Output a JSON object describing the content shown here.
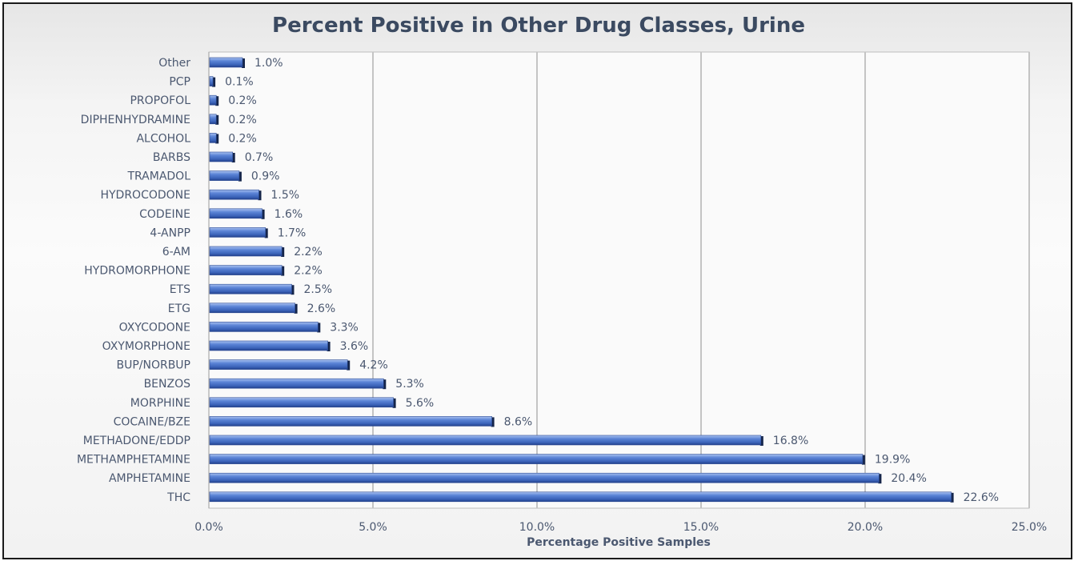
{
  "chart_data": {
    "type": "bar",
    "orientation": "horizontal",
    "title": "Percent Positive in Other Drug Classes, Urine",
    "xlabel": "Percentage Positive Samples",
    "ylabel": "",
    "xlim": [
      0,
      25
    ],
    "x_ticks": [
      "0.0%",
      "5.0%",
      "10.0%",
      "15.0%",
      "20.0%",
      "25.0%"
    ],
    "grid": "vertical",
    "legend": "none",
    "bar_color": "#4a74c9",
    "categories": [
      "Other",
      "PCP",
      "PROPOFOL",
      "DIPHENHYDRAMINE",
      "ALCOHOL",
      "BARBS",
      "TRAMADOL",
      "HYDROCODONE",
      "CODEINE",
      "4-ANPP",
      "6-AM",
      "HYDROMORPHONE",
      "ETS",
      "ETG",
      "OXYCODONE",
      "OXYMORPHONE",
      "BUP/NORBUP",
      "BENZOS",
      "MORPHINE",
      "COCAINE/BZE",
      "METHADONE/EDDP",
      "METHAMPHETAMINE",
      "AMPHETAMINE",
      "THC"
    ],
    "values": [
      1.0,
      0.1,
      0.2,
      0.2,
      0.2,
      0.7,
      0.9,
      1.5,
      1.6,
      1.7,
      2.2,
      2.2,
      2.5,
      2.6,
      3.3,
      3.6,
      4.2,
      5.3,
      5.6,
      8.6,
      16.8,
      19.9,
      20.4,
      22.6
    ],
    "data_labels": [
      "1.0%",
      "0.1%",
      "0.2%",
      "0.2%",
      "0.2%",
      "0.7%",
      "0.9%",
      "1.5%",
      "1.6%",
      "1.7%",
      "2.2%",
      "2.2%",
      "2.5%",
      "2.6%",
      "3.3%",
      "3.6%",
      "4.2%",
      "5.3%",
      "5.6%",
      "8.6%",
      "16.8%",
      "19.9%",
      "20.4%",
      "22.6%"
    ]
  }
}
